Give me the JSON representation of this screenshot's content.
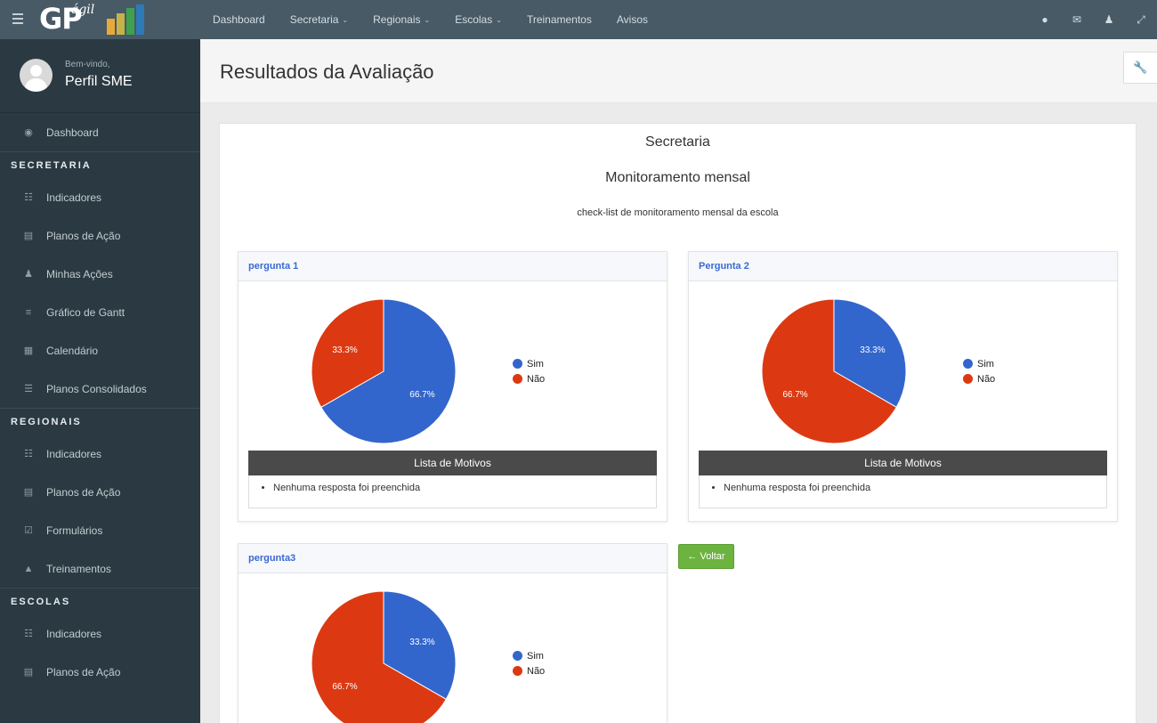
{
  "brand": {
    "logo_text": "GP",
    "logo_script": "ágil",
    "bar_colors": [
      "#e8a93b",
      "#c6b24a",
      "#3fa04d",
      "#2d7ab8"
    ]
  },
  "topnav": {
    "items": [
      {
        "label": "Dashboard",
        "has_caret": false
      },
      {
        "label": "Secretaria",
        "has_caret": true
      },
      {
        "label": "Regionais",
        "has_caret": true
      },
      {
        "label": "Escolas",
        "has_caret": true
      },
      {
        "label": "Treinamentos",
        "has_caret": false
      },
      {
        "label": "Avisos",
        "has_caret": false
      }
    ],
    "icons": [
      "globe-icon",
      "envelope-icon",
      "user-icon",
      "expand-icon"
    ]
  },
  "sidebar": {
    "welcome": "Bem-vindo,",
    "user_name": "Perfil SME",
    "dashboard": "Dashboard",
    "secretaria": {
      "title": "SECRETARIA",
      "items": [
        "Indicadores",
        "Planos de Ação",
        "Minhas Ações",
        "Gráfico de Gantt",
        "Calendário",
        "Planos Consolidados"
      ]
    },
    "regionais": {
      "title": "REGIONAIS",
      "items": [
        "Indicadores",
        "Planos de Ação",
        "Formulários",
        "Treinamentos"
      ]
    },
    "escolas": {
      "title": "ESCOLAS",
      "items": [
        "Indicadores",
        "Planos de Ação"
      ]
    }
  },
  "page": {
    "title": "Resultados da Avaliação"
  },
  "panel": {
    "heading": "Secretaria",
    "subheading": "Monitoramento mensal",
    "description": "check-list de monitoramento mensal da escola"
  },
  "legend": {
    "sim": "Sim",
    "nao": "Não",
    "sim_color": "#3366cc",
    "nao_color": "#dc3912"
  },
  "questions": [
    {
      "title": "pergunta 1",
      "sim_pct": 66.7,
      "nao_pct": 33.3,
      "sim_label": "66.7%",
      "nao_label": "33.3%"
    },
    {
      "title": "Pergunta 2",
      "sim_pct": 33.3,
      "nao_pct": 66.7,
      "sim_label": "33.3%",
      "nao_label": "66.7%"
    },
    {
      "title": "pergunta3",
      "sim_pct": 33.3,
      "nao_pct": 66.7,
      "sim_label": "33.3%",
      "nao_label": "66.7%"
    }
  ],
  "motivos": {
    "title": "Lista de Motivos",
    "empty": "Nenhuma resposta foi preenchida"
  },
  "voltar_label": "← Voltar"
}
